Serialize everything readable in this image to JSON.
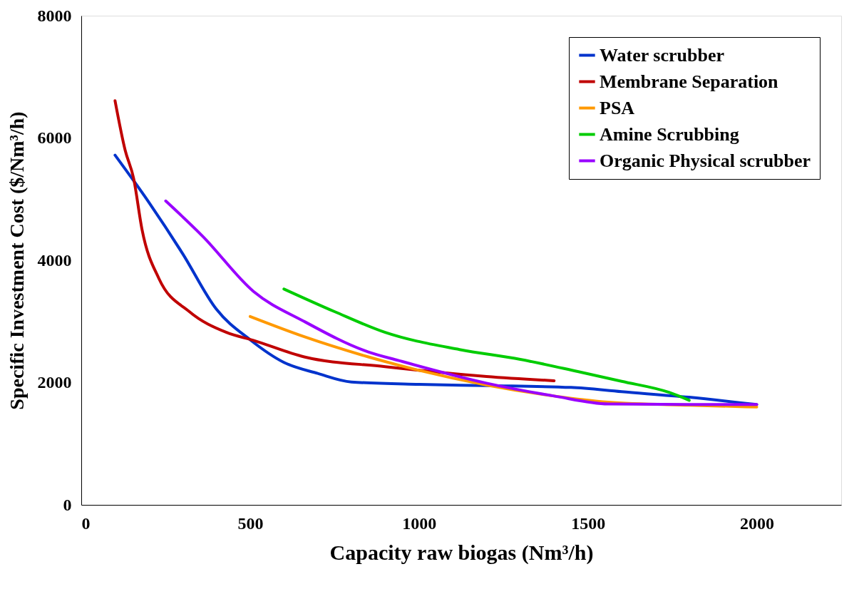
{
  "chart_data": {
    "type": "line",
    "xlabel": "Capacity raw biogas (Nm³/h)",
    "ylabel": "Specific Investment Cost ($/Nm³/h)",
    "xlim": [
      0,
      2250
    ],
    "xticks": [
      0,
      500,
      1000,
      1500,
      2000
    ],
    "ylim": [
      0,
      8000
    ],
    "yticks": [
      0,
      2000,
      4000,
      6000,
      8000
    ],
    "grid": false,
    "legend": "top right",
    "marker": "none",
    "line_style": "solid",
    "series": [
      {
        "name": "Water scrubber",
        "color": "#0033cc",
        "x": [
          100,
          200,
          300,
          400,
          500,
          600,
          700,
          800,
          1000,
          1200,
          1450,
          1600,
          1800,
          2000
        ],
        "values": [
          5720,
          4950,
          4110,
          3200,
          2700,
          2330,
          2150,
          2010,
          1970,
          1950,
          1920,
          1850,
          1760,
          1640
        ]
      },
      {
        "name": "Membrane Separation",
        "color": "#c00000",
        "x": [
          100,
          130,
          155,
          180,
          230,
          320,
          430,
          510,
          660,
          900,
          1200,
          1400
        ],
        "values": [
          6610,
          5800,
          5340,
          4500,
          3700,
          3160,
          2820,
          2690,
          2420,
          2260,
          2100,
          2030
        ]
      },
      {
        "name": "PSA",
        "color": "#ff9900",
        "x": [
          500,
          660,
          850,
          1000,
          1200,
          1400,
          1560,
          1800,
          2000
        ],
        "values": [
          3080,
          2750,
          2420,
          2200,
          1960,
          1780,
          1680,
          1630,
          1600
        ]
      },
      {
        "name": "Amine Scrubbing",
        "color": "#00cc00",
        "x": [
          600,
          750,
          900,
          1120,
          1300,
          1470,
          1600,
          1740,
          1800
        ],
        "values": [
          3530,
          3160,
          2820,
          2540,
          2380,
          2180,
          2020,
          1840,
          1710
        ]
      },
      {
        "name": "Organic Physical scrubber",
        "color": "#9900ff",
        "x": [
          250,
          360,
          510,
          660,
          850,
          940,
          1200,
          1400,
          1560,
          1800,
          2000
        ],
        "values": [
          4970,
          4390,
          3490,
          3000,
          2500,
          2360,
          1990,
          1780,
          1650,
          1640,
          1640
        ]
      }
    ]
  }
}
